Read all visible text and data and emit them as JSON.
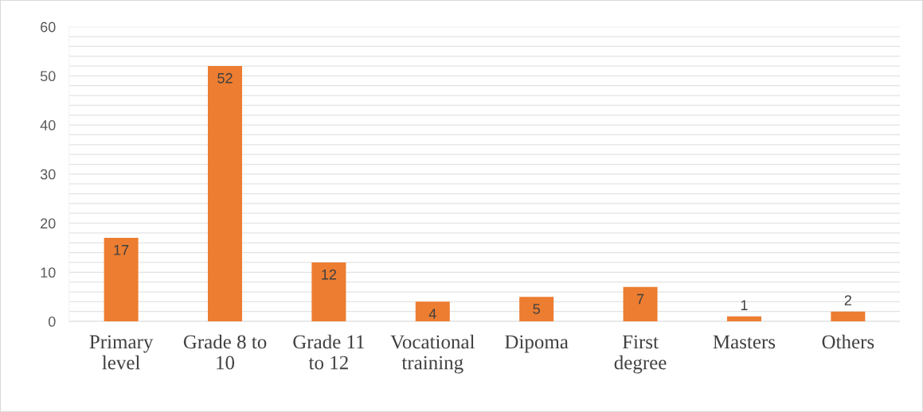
{
  "chart_data": {
    "type": "bar",
    "categories": [
      "Primary\nlevel",
      "Grade 8 to\n10",
      "Grade 11\nto 12",
      "Vocational\ntraining",
      "Dipoma",
      "First\ndegree",
      "Masters",
      "Others"
    ],
    "values": [
      17,
      52,
      12,
      4,
      5,
      7,
      1,
      2
    ],
    "color": "#ed7d31",
    "ylim": [
      0,
      60
    ],
    "yticks": [
      0,
      {
        "value": 2,
        "label": null
      },
      {
        "value": 4,
        "label": null
      },
      {
        "value": 6,
        "label": null
      },
      {
        "value": 8,
        "label": null
      },
      10,
      {
        "value": 12,
        "label": null
      },
      {
        "value": 14,
        "label": null
      },
      {
        "value": 16,
        "label": null
      },
      {
        "value": 18,
        "label": null
      },
      20,
      {
        "value": 22,
        "label": null
      },
      {
        "value": 24,
        "label": null
      },
      {
        "value": 26,
        "label": null
      },
      {
        "value": 28,
        "label": null
      },
      30,
      {
        "value": 32,
        "label": null
      },
      {
        "value": 34,
        "label": null
      },
      {
        "value": 36,
        "label": null
      },
      {
        "value": 38,
        "label": null
      },
      40,
      {
        "value": 42,
        "label": null
      },
      {
        "value": 44,
        "label": null
      },
      {
        "value": 46,
        "label": null
      },
      {
        "value": 48,
        "label": null
      },
      50,
      {
        "value": 52,
        "label": null
      },
      {
        "value": 54,
        "label": null
      },
      {
        "value": 56,
        "label": null
      },
      {
        "value": 58,
        "label": null
      },
      60
    ],
    "grid": "y",
    "data_labels": true
  }
}
